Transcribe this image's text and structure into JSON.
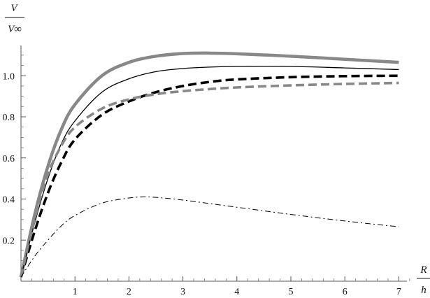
{
  "chart_data": {
    "type": "line",
    "title": "",
    "xlabel": {
      "numerator": "R",
      "denominator": "h"
    },
    "ylabel": {
      "numerator": "V",
      "denominator": "V∞"
    },
    "xlim": [
      0,
      7.2
    ],
    "ylim": [
      0,
      1.15
    ],
    "xticks": [
      1,
      2,
      3,
      4,
      5,
      6,
      7
    ],
    "yticks": [
      0.2,
      0.4,
      0.6,
      0.8,
      1.0
    ],
    "ytick_labels": [
      "0.2",
      "0.4",
      "0.6",
      "0.8",
      "1.0"
    ],
    "grid": false,
    "legend": "none",
    "series": [
      {
        "style": "thick-gray-solid",
        "color": "#888888",
        "x": [
          0,
          0.25,
          0.5,
          0.75,
          1,
          1.5,
          2,
          2.5,
          3,
          3.5,
          4,
          5,
          6,
          7
        ],
        "y": [
          0.02,
          0.32,
          0.56,
          0.74,
          0.86,
          1.0,
          1.065,
          1.095,
          1.108,
          1.11,
          1.107,
          1.095,
          1.08,
          1.065
        ]
      },
      {
        "style": "thin-black-solid",
        "color": "#000000",
        "x": [
          0,
          0.25,
          0.5,
          0.75,
          1,
          1.5,
          2,
          2.5,
          3,
          3.5,
          4,
          5,
          6,
          7
        ],
        "y": [
          0.02,
          0.28,
          0.5,
          0.67,
          0.78,
          0.92,
          0.985,
          1.02,
          1.035,
          1.042,
          1.045,
          1.045,
          1.038,
          1.03
        ]
      },
      {
        "style": "thick-black-dashed",
        "color": "#000000",
        "x": [
          0,
          0.25,
          0.5,
          0.75,
          1,
          1.5,
          2,
          2.5,
          3,
          3.5,
          4,
          5,
          6,
          7
        ],
        "y": [
          0.02,
          0.24,
          0.43,
          0.58,
          0.69,
          0.81,
          0.875,
          0.92,
          0.95,
          0.97,
          0.982,
          0.993,
          0.998,
          1.0
        ]
      },
      {
        "style": "thick-gray-dashed",
        "color": "#888888",
        "x": [
          0,
          0.25,
          0.5,
          0.75,
          1,
          1.5,
          2,
          2.5,
          3,
          3.5,
          4,
          5,
          6,
          7
        ],
        "y": [
          0.02,
          0.3,
          0.52,
          0.66,
          0.75,
          0.84,
          0.885,
          0.91,
          0.925,
          0.935,
          0.943,
          0.953,
          0.96,
          0.965
        ]
      },
      {
        "style": "thin-black-dashdot",
        "color": "#000000",
        "x": [
          0,
          0.25,
          0.5,
          0.75,
          1,
          1.5,
          2,
          2.25,
          2.5,
          3,
          4,
          5,
          6,
          7
        ],
        "y": [
          0.02,
          0.12,
          0.2,
          0.27,
          0.32,
          0.38,
          0.405,
          0.41,
          0.408,
          0.395,
          0.36,
          0.325,
          0.293,
          0.265
        ]
      }
    ]
  }
}
